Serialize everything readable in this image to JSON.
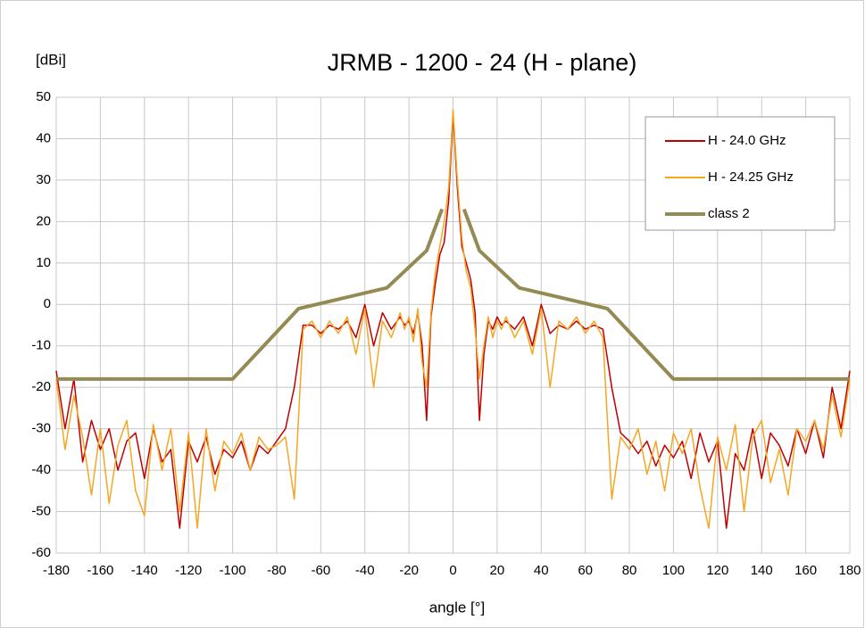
{
  "chart_data": {
    "type": "line",
    "title": "JRMB - 1200 - 24 (H - plane)",
    "y_label": "[dBi]",
    "x_label": "angle [°]",
    "x": [
      -180,
      -176,
      -172,
      -168,
      -164,
      -160,
      -156,
      -152,
      -148,
      -144,
      -140,
      -136,
      -132,
      -128,
      -124,
      -120,
      -116,
      -112,
      -108,
      -104,
      -100,
      -96,
      -92,
      -88,
      -84,
      -80,
      -76,
      -72,
      -68,
      -64,
      -60,
      -56,
      -52,
      -48,
      -44,
      -40,
      -36,
      -32,
      -28,
      -24,
      -22,
      -20,
      -18,
      -16,
      -14,
      -12,
      -10,
      -8,
      -6,
      -4,
      -2,
      0,
      2,
      4,
      6,
      8,
      10,
      12,
      14,
      16,
      18,
      20,
      22,
      24,
      28,
      32,
      36,
      40,
      44,
      48,
      52,
      56,
      60,
      64,
      68,
      72,
      76,
      80,
      84,
      88,
      92,
      96,
      100,
      104,
      108,
      112,
      116,
      120,
      124,
      128,
      132,
      136,
      140,
      144,
      148,
      152,
      156,
      160,
      164,
      168,
      172,
      176,
      180
    ],
    "series": [
      {
        "name": "H - 24.0 GHz",
        "color": "#c00000",
        "values": [
          -16,
          -30,
          -18,
          -38,
          -28,
          -35,
          -30,
          -40,
          -33,
          -31,
          -42,
          -30,
          -38,
          -35,
          -54,
          -33,
          -38,
          -32,
          -41,
          -35,
          -37,
          -33,
          -40,
          -34,
          -36,
          -33,
          -30,
          -20,
          -5,
          -5,
          -7,
          -5,
          -6,
          -4,
          -8,
          0,
          -10,
          -2,
          -6,
          -3,
          -5,
          -4,
          -7,
          -2,
          -10,
          -28,
          -3,
          5,
          12,
          15,
          25,
          46,
          28,
          14,
          10,
          6,
          -2,
          -28,
          -12,
          -4,
          -6,
          -3,
          -5,
          -4,
          -6,
          -3,
          -10,
          0,
          -7,
          -5,
          -6,
          -4,
          -6,
          -5,
          -6,
          -20,
          -31,
          -33,
          -36,
          -33,
          -39,
          -34,
          -37,
          -33,
          -42,
          -31,
          -38,
          -33,
          -54,
          -36,
          -40,
          -30,
          -42,
          -31,
          -34,
          -39,
          -30,
          -36,
          -28,
          -37,
          -20,
          -30,
          -16
        ]
      },
      {
        "name": "H - 24.25 GHz",
        "color": "#f5a623",
        "values": [
          -18,
          -35,
          -22,
          -32,
          -46,
          -30,
          -48,
          -34,
          -28,
          -45,
          -51,
          -29,
          -40,
          -30,
          -50,
          -31,
          -54,
          -30,
          -45,
          -33,
          -36,
          -31,
          -40,
          -32,
          -35,
          -34,
          -32,
          -47,
          -6,
          -4,
          -8,
          -4,
          -7,
          -3,
          -12,
          -1,
          -20,
          -4,
          -8,
          -2,
          -6,
          -3,
          -9,
          -1,
          -14,
          -20,
          -2,
          8,
          14,
          20,
          28,
          47,
          30,
          16,
          8,
          4,
          -6,
          -18,
          -10,
          -3,
          -8,
          -4,
          -6,
          -3,
          -8,
          -4,
          -12,
          -1,
          -20,
          -4,
          -6,
          -3,
          -7,
          -4,
          -8,
          -47,
          -32,
          -35,
          -30,
          -41,
          -33,
          -45,
          -31,
          -36,
          -30,
          -44,
          -54,
          -32,
          -40,
          -29,
          -50,
          -32,
          -28,
          -43,
          -35,
          -46,
          -30,
          -33,
          -28,
          -35,
          -22,
          -32,
          -18
        ]
      },
      {
        "name": "class 2",
        "color": "#948a54",
        "x": [
          -180,
          -100,
          -70,
          -30,
          -12,
          -5,
          0,
          5,
          12,
          30,
          70,
          100,
          180
        ],
        "values": [
          -18,
          -18,
          -1,
          4,
          13,
          23,
          null,
          23,
          13,
          4,
          -1,
          -18,
          -18
        ]
      }
    ],
    "xlim": [
      -180,
      180
    ],
    "xticks": [
      -180,
      -160,
      -140,
      -120,
      -100,
      -80,
      -60,
      -40,
      -20,
      0,
      20,
      40,
      60,
      80,
      100,
      120,
      140,
      160,
      180
    ],
    "ylim": [
      -60,
      50
    ],
    "yticks": [
      -60,
      -50,
      -40,
      -30,
      -20,
      -10,
      0,
      10,
      20,
      30,
      40,
      50
    ],
    "grid": true,
    "legend": "top-right"
  }
}
